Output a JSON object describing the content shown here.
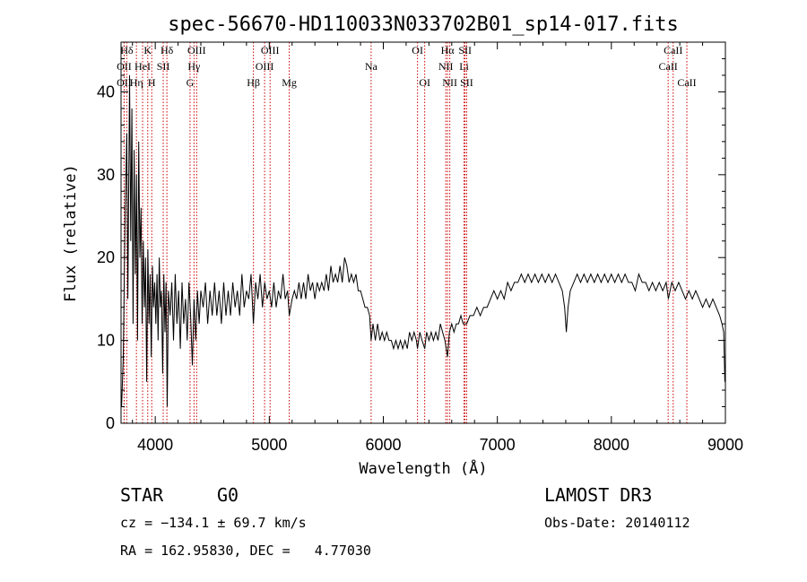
{
  "chart_data": {
    "type": "line",
    "title": "spec-56670-HD110033N033702B01_sp14-017.fits",
    "xlabel": "Wavelength (Å)",
    "ylabel": "Flux (relative)",
    "xlim": [
      3700,
      9000
    ],
    "ylim": [
      0,
      46
    ],
    "xticks": [
      4000,
      5000,
      6000,
      7000,
      8000,
      9000
    ],
    "yticks": [
      0,
      10,
      20,
      30,
      40
    ],
    "grid": false,
    "line_color": "#000000",
    "marker_color": "#cc0000",
    "series": [
      {
        "points": [
          [
            3705,
            2
          ],
          [
            3720,
            8
          ],
          [
            3735,
            25
          ],
          [
            3750,
            35
          ],
          [
            3760,
            15
          ],
          [
            3775,
            42
          ],
          [
            3785,
            22
          ],
          [
            3795,
            38
          ],
          [
            3805,
            12
          ],
          [
            3815,
            33
          ],
          [
            3825,
            18
          ],
          [
            3835,
            30
          ],
          [
            3845,
            10
          ],
          [
            3855,
            34
          ],
          [
            3865,
            20
          ],
          [
            3875,
            26
          ],
          [
            3885,
            12
          ],
          [
            3895,
            22
          ],
          [
            3905,
            14
          ],
          [
            3915,
            20
          ],
          [
            3925,
            5
          ],
          [
            3935,
            21
          ],
          [
            3945,
            12
          ],
          [
            3955,
            18
          ],
          [
            3965,
            8
          ],
          [
            3975,
            19
          ],
          [
            3985,
            14
          ],
          [
            3995,
            17
          ],
          [
            4005,
            12
          ],
          [
            4015,
            18
          ],
          [
            4025,
            10
          ],
          [
            4035,
            20
          ],
          [
            4045,
            14
          ],
          [
            4055,
            16
          ],
          [
            4065,
            6
          ],
          [
            4075,
            18
          ],
          [
            4085,
            11
          ],
          [
            4095,
            17
          ],
          [
            4105,
            2
          ],
          [
            4115,
            16
          ],
          [
            4130,
            13
          ],
          [
            4145,
            17
          ],
          [
            4160,
            10
          ],
          [
            4175,
            18
          ],
          [
            4190,
            12
          ],
          [
            4205,
            16
          ],
          [
            4220,
            9
          ],
          [
            4235,
            17
          ],
          [
            4250,
            12
          ],
          [
            4265,
            15
          ],
          [
            4280,
            10
          ],
          [
            4295,
            17
          ],
          [
            4310,
            13
          ],
          [
            4325,
            7
          ],
          [
            4340,
            15
          ],
          [
            4355,
            10
          ],
          [
            4370,
            16
          ],
          [
            4385,
            12
          ],
          [
            4400,
            16
          ],
          [
            4420,
            14
          ],
          [
            4440,
            17
          ],
          [
            4460,
            12
          ],
          [
            4480,
            16
          ],
          [
            4500,
            13
          ],
          [
            4520,
            17
          ],
          [
            4540,
            13
          ],
          [
            4560,
            16
          ],
          [
            4580,
            12
          ],
          [
            4600,
            17
          ],
          [
            4620,
            13
          ],
          [
            4640,
            16
          ],
          [
            4660,
            13
          ],
          [
            4680,
            17
          ],
          [
            4700,
            14
          ],
          [
            4720,
            16
          ],
          [
            4740,
            13
          ],
          [
            4760,
            18
          ],
          [
            4780,
            14
          ],
          [
            4800,
            16
          ],
          [
            4820,
            15
          ],
          [
            4840,
            18
          ],
          [
            4861,
            12
          ],
          [
            4880,
            17
          ],
          [
            4900,
            15
          ],
          [
            4920,
            18
          ],
          [
            4940,
            14
          ],
          [
            4960,
            17
          ],
          [
            4980,
            15
          ],
          [
            5000,
            16
          ],
          [
            5020,
            14
          ],
          [
            5040,
            17
          ],
          [
            5060,
            14
          ],
          [
            5080,
            16
          ],
          [
            5100,
            15
          ],
          [
            5120,
            18
          ],
          [
            5140,
            15
          ],
          [
            5160,
            16
          ],
          [
            5175,
            13
          ],
          [
            5200,
            15
          ],
          [
            5220,
            16
          ],
          [
            5240,
            15
          ],
          [
            5260,
            17
          ],
          [
            5280,
            15
          ],
          [
            5300,
            17
          ],
          [
            5320,
            15
          ],
          [
            5340,
            18
          ],
          [
            5360,
            16
          ],
          [
            5380,
            17
          ],
          [
            5400,
            15
          ],
          [
            5420,
            17
          ],
          [
            5440,
            16
          ],
          [
            5460,
            17
          ],
          [
            5480,
            16
          ],
          [
            5500,
            18
          ],
          [
            5520,
            16
          ],
          [
            5540,
            19
          ],
          [
            5560,
            17
          ],
          [
            5580,
            18
          ],
          [
            5600,
            17
          ],
          [
            5620,
            19
          ],
          [
            5640,
            17
          ],
          [
            5660,
            20
          ],
          [
            5680,
            19
          ],
          [
            5700,
            17
          ],
          [
            5720,
            18
          ],
          [
            5740,
            17
          ],
          [
            5760,
            18
          ],
          [
            5780,
            16
          ],
          [
            5800,
            16
          ],
          [
            5820,
            15
          ],
          [
            5840,
            14
          ],
          [
            5860,
            14
          ],
          [
            5880,
            13
          ],
          [
            5893,
            10
          ],
          [
            5910,
            12
          ],
          [
            5930,
            10
          ],
          [
            5950,
            12
          ],
          [
            5970,
            10
          ],
          [
            5990,
            11
          ],
          [
            6010,
            10
          ],
          [
            6030,
            11
          ],
          [
            6050,
            10
          ],
          [
            6070,
            10
          ],
          [
            6090,
            9
          ],
          [
            6110,
            10
          ],
          [
            6130,
            9
          ],
          [
            6150,
            10
          ],
          [
            6170,
            9
          ],
          [
            6190,
            10
          ],
          [
            6210,
            9
          ],
          [
            6230,
            11
          ],
          [
            6250,
            10
          ],
          [
            6270,
            11
          ],
          [
            6290,
            10
          ],
          [
            6300,
            9
          ],
          [
            6320,
            11
          ],
          [
            6340,
            10
          ],
          [
            6363,
            9
          ],
          [
            6380,
            11
          ],
          [
            6400,
            10
          ],
          [
            6420,
            11
          ],
          [
            6440,
            10
          ],
          [
            6460,
            11
          ],
          [
            6480,
            10
          ],
          [
            6500,
            12
          ],
          [
            6520,
            11
          ],
          [
            6540,
            10
          ],
          [
            6563,
            8
          ],
          [
            6580,
            11
          ],
          [
            6600,
            12
          ],
          [
            6620,
            11
          ],
          [
            6640,
            12
          ],
          [
            6660,
            12
          ],
          [
            6680,
            13
          ],
          [
            6700,
            12
          ],
          [
            6717,
            12
          ],
          [
            6731,
            12
          ],
          [
            6760,
            13
          ],
          [
            6790,
            13
          ],
          [
            6820,
            14
          ],
          [
            6850,
            13
          ],
          [
            6880,
            14
          ],
          [
            6910,
            14
          ],
          [
            6940,
            15
          ],
          [
            6970,
            16
          ],
          [
            7000,
            15
          ],
          [
            7030,
            16
          ],
          [
            7060,
            15
          ],
          [
            7090,
            17
          ],
          [
            7120,
            16
          ],
          [
            7150,
            17
          ],
          [
            7180,
            17
          ],
          [
            7210,
            18
          ],
          [
            7240,
            17
          ],
          [
            7270,
            18
          ],
          [
            7300,
            17
          ],
          [
            7330,
            18
          ],
          [
            7360,
            17
          ],
          [
            7390,
            18
          ],
          [
            7420,
            17
          ],
          [
            7450,
            18
          ],
          [
            7480,
            17
          ],
          [
            7510,
            18
          ],
          [
            7540,
            17
          ],
          [
            7570,
            16
          ],
          [
            7590,
            14
          ],
          [
            7605,
            11
          ],
          [
            7620,
            14
          ],
          [
            7640,
            16
          ],
          [
            7670,
            17
          ],
          [
            7700,
            18
          ],
          [
            7730,
            17
          ],
          [
            7760,
            18
          ],
          [
            7790,
            17
          ],
          [
            7820,
            18
          ],
          [
            7850,
            17
          ],
          [
            7880,
            18
          ],
          [
            7910,
            17
          ],
          [
            7940,
            18
          ],
          [
            7970,
            17
          ],
          [
            8000,
            18
          ],
          [
            8030,
            17
          ],
          [
            8060,
            18
          ],
          [
            8090,
            17
          ],
          [
            8120,
            18
          ],
          [
            8150,
            17
          ],
          [
            8180,
            17
          ],
          [
            8210,
            16
          ],
          [
            8240,
            18
          ],
          [
            8270,
            17
          ],
          [
            8300,
            17
          ],
          [
            8330,
            16
          ],
          [
            8360,
            17
          ],
          [
            8390,
            16
          ],
          [
            8420,
            17
          ],
          [
            8450,
            16
          ],
          [
            8480,
            17
          ],
          [
            8500,
            15
          ],
          [
            8530,
            17
          ],
          [
            8560,
            16
          ],
          [
            8590,
            17
          ],
          [
            8620,
            16
          ],
          [
            8650,
            15
          ],
          [
            8680,
            16
          ],
          [
            8710,
            15
          ],
          [
            8740,
            16
          ],
          [
            8770,
            15
          ],
          [
            8800,
            14
          ],
          [
            8830,
            15
          ],
          [
            8860,
            14
          ],
          [
            8890,
            15
          ],
          [
            8920,
            14
          ],
          [
            8950,
            13
          ],
          [
            8970,
            12
          ],
          [
            8985,
            11
          ],
          [
            8995,
            5
          ]
        ]
      }
    ],
    "spectral_lines": [
      {
        "label": "Hδ",
        "x": 3750,
        "row": 0
      },
      {
        "label": "OII",
        "x": 3727,
        "row": 1
      },
      {
        "label": "OII",
        "x": 3727,
        "row": 2
      },
      {
        "label": "K",
        "x": 3934,
        "row": 0
      },
      {
        "label": "HeI",
        "x": 3889,
        "row": 1
      },
      {
        "label": "Hη",
        "x": 3835,
        "row": 2
      },
      {
        "label": "SII",
        "x": 4070,
        "row": 1
      },
      {
        "label": "H",
        "x": 3969,
        "row": 2
      },
      {
        "label": "Hδ",
        "x": 4102,
        "row": 0
      },
      {
        "label": "OIII",
        "x": 4363,
        "row": 0
      },
      {
        "label": "Hγ",
        "x": 4340,
        "row": 1
      },
      {
        "label": "G",
        "x": 4305,
        "row": 2
      },
      {
        "label": "OIII",
        "x": 5007,
        "row": 0
      },
      {
        "label": "OIII",
        "x": 4959,
        "row": 1
      },
      {
        "label": "Hβ",
        "x": 4861,
        "row": 2
      },
      {
        "label": "Mg",
        "x": 5175,
        "row": 2
      },
      {
        "label": "Na",
        "x": 5893,
        "row": 1
      },
      {
        "label": "OI",
        "x": 6300,
        "row": 0
      },
      {
        "label": "OI",
        "x": 6363,
        "row": 2
      },
      {
        "label": "Hα",
        "x": 6563,
        "row": 0
      },
      {
        "label": "SII",
        "x": 6717,
        "row": 0
      },
      {
        "label": "NII",
        "x": 6548,
        "row": 1
      },
      {
        "label": "Li",
        "x": 6708,
        "row": 1
      },
      {
        "label": "NII",
        "x": 6583,
        "row": 2
      },
      {
        "label": "SII",
        "x": 6731,
        "row": 2
      },
      {
        "label": "CaII",
        "x": 8542,
        "row": 0
      },
      {
        "label": "CaII",
        "x": 8498,
        "row": 1
      },
      {
        "label": "CaII",
        "x": 8662,
        "row": 2
      }
    ]
  },
  "info": {
    "class": "STAR",
    "subclass": "G0",
    "survey": "LAMOST DR3",
    "cz": "cz = −134.1 ± 69.7 km/s",
    "obs_date": "Obs-Date: 20140112",
    "coords": "RA = 162.95830, DEC =   4.77030"
  }
}
